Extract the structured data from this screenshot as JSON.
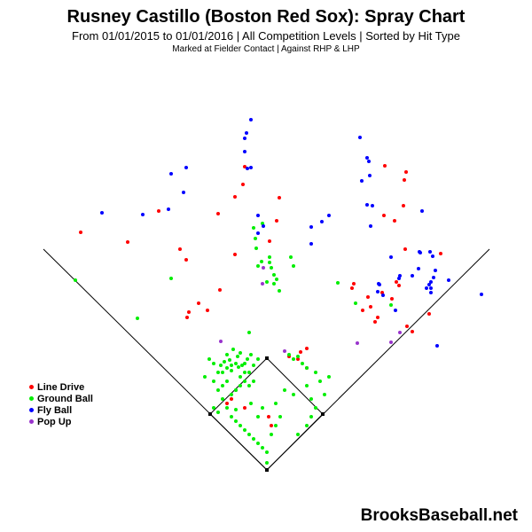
{
  "title": "Rusney Castillo (Boston Red Sox): Spray Chart",
  "subtitle": "From 01/01/2015 to 01/01/2016 | All Competition Levels | Sorted by Hit Type",
  "subtitle2": "Marked at Fielder Contact |   Against RHP & LHP",
  "brand": "BrooksBaseball.net",
  "colors": {
    "line_drive": "#ff0000",
    "ground_ball": "#00ee00",
    "fly_ball": "#0000ff",
    "pop_up": "#9933cc",
    "field_line": "#000000"
  },
  "legend": [
    {
      "label": "Line Drive",
      "color": "#ff0000"
    },
    {
      "label": "Ground Ball",
      "color": "#00ee00"
    },
    {
      "label": "Fly Ball",
      "color": "#0000ff"
    },
    {
      "label": "Pop Up",
      "color": "#9933cc"
    }
  ],
  "chart_data": {
    "type": "scatter",
    "title": "Rusney Castillo (Boston Red Sox): Spray Chart",
    "series": [
      {
        "name": "Line Drive",
        "color": "#ff0000",
        "points": [
          [
            -210,
            268
          ],
          [
            -157,
            257
          ],
          [
            -122,
            292
          ],
          [
            -55,
            289
          ],
          [
            -91,
            237
          ],
          [
            -98,
            249
          ],
          [
            -53,
            203
          ],
          [
            -90,
            172
          ],
          [
            -88,
            178
          ],
          [
            -67,
            180
          ],
          [
            -77,
            188
          ],
          [
            -36,
            243
          ],
          [
            -25,
            342
          ],
          [
            -36,
            308
          ],
          [
            -27,
            322
          ],
          [
            3,
            258
          ],
          [
            14,
            307
          ],
          [
            11,
            281
          ],
          [
            133,
            343
          ],
          [
            157,
            336
          ],
          [
            155,
            327
          ],
          [
            132,
            287
          ],
          [
            154,
            298
          ],
          [
            144,
            281
          ],
          [
            98,
            210
          ],
          [
            114,
            195
          ],
          [
            117,
            184
          ],
          [
            125,
            172
          ],
          [
            122,
            167
          ],
          [
            149,
            208
          ],
          [
            130,
            200
          ],
          [
            141,
            193
          ],
          [
            164,
            156
          ],
          [
            158,
            162
          ],
          [
            183,
            176
          ],
          [
            196,
            244
          ],
          [
            156,
            249
          ],
          [
            96,
            205
          ],
          [
            108,
            180
          ],
          [
            146,
            212
          ],
          [
            45,
            137
          ],
          [
            38,
            133
          ],
          [
            25,
            128
          ],
          [
            -40,
            80
          ],
          [
            -45,
            75
          ],
          [
            -25,
            70
          ],
          [
            2,
            60
          ],
          [
            5,
            50
          ],
          [
            45,
            115
          ],
          [
            35,
            125
          ]
        ]
      },
      {
        "name": "Ground Ball",
        "color": "#00ee00",
        "points": [
          [
            -216,
            214
          ],
          [
            -146,
            171
          ],
          [
            -108,
            216
          ],
          [
            -15,
            273
          ],
          [
            -5,
            278
          ],
          [
            -13,
            261
          ],
          [
            -12,
            250
          ],
          [
            3,
            240
          ],
          [
            3,
            234
          ],
          [
            5,
            228
          ],
          [
            8,
            220
          ],
          [
            11,
            215
          ],
          [
            8,
            210
          ],
          [
            14,
            202
          ],
          [
            -6,
            235
          ],
          [
            0,
            212
          ],
          [
            -10,
            230
          ],
          [
            27,
            240
          ],
          [
            30,
            230
          ],
          [
            80,
            211
          ],
          [
            100,
            188
          ],
          [
            140,
            186
          ],
          [
            -20,
            155
          ],
          [
            -33,
            128
          ],
          [
            -40,
            112
          ],
          [
            -45,
            100
          ],
          [
            -50,
            110
          ],
          [
            -30,
            105
          ],
          [
            -25,
            110
          ],
          [
            -20,
            110
          ],
          [
            -15,
            118
          ],
          [
            -10,
            125
          ],
          [
            -15,
            100
          ],
          [
            -20,
            95
          ],
          [
            -30,
            95
          ],
          [
            -35,
            90
          ],
          [
            -50,
            80
          ],
          [
            -55,
            90
          ],
          [
            -60,
            100
          ],
          [
            -60,
            70
          ],
          [
            -55,
            65
          ],
          [
            -45,
            70
          ],
          [
            -35,
            68
          ],
          [
            -40,
            60
          ],
          [
            -35,
            55
          ],
          [
            -30,
            50
          ],
          [
            -25,
            45
          ],
          [
            -20,
            40
          ],
          [
            -15,
            35
          ],
          [
            -10,
            30
          ],
          [
            -5,
            25
          ],
          [
            0,
            20
          ],
          [
            0,
            8
          ],
          [
            -40,
            85
          ],
          [
            -50,
            95
          ],
          [
            -55,
            110
          ],
          [
            -45,
            115
          ],
          [
            25,
            130
          ],
          [
            30,
            125
          ],
          [
            35,
            128
          ],
          [
            40,
            120
          ],
          [
            45,
            115
          ],
          [
            55,
            110
          ],
          [
            60,
            100
          ],
          [
            70,
            105
          ],
          [
            65,
            85
          ],
          [
            55,
            70
          ],
          [
            50,
            60
          ],
          [
            45,
            50
          ],
          [
            35,
            40
          ],
          [
            15,
            60
          ],
          [
            10,
            50
          ],
          [
            5,
            40
          ],
          [
            -10,
            60
          ],
          [
            -18,
            75
          ],
          [
            -5,
            70
          ],
          [
            10,
            75
          ],
          [
            20,
            90
          ],
          [
            30,
            85
          ],
          [
            45,
            95
          ],
          [
            50,
            80
          ],
          [
            -60,
            120
          ],
          [
            -65,
            125
          ],
          [
            -70,
            105
          ],
          [
            -35,
            90
          ],
          [
            -25,
            100
          ],
          [
            -45,
            130
          ],
          [
            -38,
            136
          ],
          [
            -30,
            132
          ],
          [
            -22,
            125
          ],
          [
            -18,
            130
          ],
          [
            -25,
            120
          ],
          [
            -28,
            118
          ],
          [
            -32,
            116
          ],
          [
            -35,
            120
          ],
          [
            -40,
            118
          ],
          [
            -42,
            124
          ],
          [
            -48,
            122
          ],
          [
            -52,
            118
          ]
        ]
      },
      {
        "name": "Fly Ball",
        "color": "#0000ff",
        "points": [
          [
            -186,
            290
          ],
          [
            -140,
            288
          ],
          [
            -111,
            294
          ],
          [
            -108,
            334
          ],
          [
            -91,
            341
          ],
          [
            -94,
            313
          ],
          [
            -25,
            359
          ],
          [
            -25,
            374
          ],
          [
            -22,
            340
          ],
          [
            -23,
            380
          ],
          [
            -18,
            395
          ],
          [
            -18,
            341
          ],
          [
            -4,
            275
          ],
          [
            -10,
            267
          ],
          [
            -10,
            287
          ],
          [
            70,
            287
          ],
          [
            50,
            274
          ],
          [
            50,
            255
          ],
          [
            62,
            280
          ],
          [
            105,
            375
          ],
          [
            115,
            348
          ],
          [
            113,
            352
          ],
          [
            116,
            332
          ],
          [
            107,
            326
          ],
          [
            113,
            299
          ],
          [
            117,
            275
          ],
          [
            119,
            298
          ],
          [
            126,
            210
          ],
          [
            140,
            240
          ],
          [
            149,
            216
          ],
          [
            164,
            219
          ],
          [
            173,
            245
          ],
          [
            175,
            292
          ],
          [
            127,
            209
          ],
          [
            125,
            201
          ],
          [
            131,
            197
          ],
          [
            145,
            180
          ],
          [
            150,
            219
          ],
          [
            171,
            227
          ],
          [
            172,
            246
          ],
          [
            185,
            205
          ],
          [
            184,
            246
          ],
          [
            205,
            214
          ],
          [
            187,
            241
          ],
          [
            242,
            198
          ],
          [
            192,
            140
          ],
          [
            185,
            200
          ],
          [
            190,
            225
          ],
          [
            188,
            217
          ],
          [
            185,
            212
          ],
          [
            183,
            209
          ],
          [
            180,
            205
          ]
        ]
      },
      {
        "name": "Pop Up",
        "color": "#9933cc",
        "points": [
          [
            -5,
            210
          ],
          [
            -4,
            228
          ],
          [
            20,
            134
          ],
          [
            -52,
            145
          ],
          [
            102,
            143
          ],
          [
            140,
            144
          ],
          [
            150,
            155
          ]
        ]
      }
    ],
    "xlabel": "",
    "ylabel": "",
    "legend": "left",
    "grid": false
  }
}
